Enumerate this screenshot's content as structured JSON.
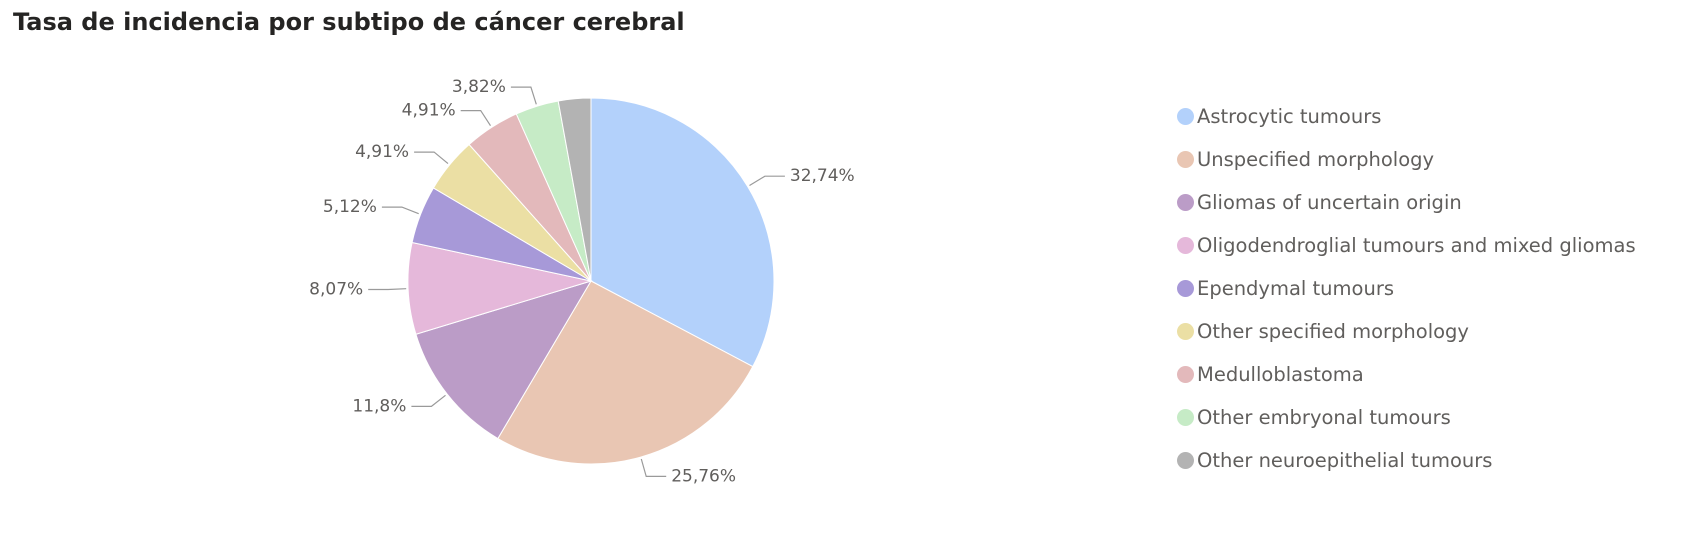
{
  "title": "Tasa de incidencia por subtipo de cáncer cerebral",
  "chart_data": {
    "type": "pie",
    "title": "Tasa de incidencia por subtipo de cáncer cerebral",
    "legend_position": "right",
    "slices": [
      {
        "label": "Astrocytic tumours",
        "value": 32.74,
        "display": "32,74%",
        "color": "#b3d1fb"
      },
      {
        "label": "Unspecified morphology",
        "value": 25.76,
        "display": "25,76%",
        "color": "#e9c6b3"
      },
      {
        "label": "Gliomas of uncertain origin",
        "value": 11.8,
        "display": "11,8%",
        "color": "#bb9cc7"
      },
      {
        "label": "Oligodendroglial tumours and mixed gliomas",
        "value": 8.07,
        "display": "8,07%",
        "color": "#e5b8da"
      },
      {
        "label": "Ependymal tumours",
        "value": 5.12,
        "display": "5,12%",
        "color": "#a799d8"
      },
      {
        "label": "Other specified morphology",
        "value": 4.91,
        "display": "4,91%",
        "color": "#ebdfa4"
      },
      {
        "label": "Medulloblastoma",
        "value": 4.91,
        "display": "4,91%",
        "color": "#e3b9bb"
      },
      {
        "label": "Other embryonal tumours",
        "value": 3.82,
        "display": "3,82%",
        "color": "#c6ebc6"
      },
      {
        "label": "Other neuroepithelial tumours",
        "value": 2.87,
        "display": "",
        "color": "#b3b3b3"
      }
    ]
  }
}
